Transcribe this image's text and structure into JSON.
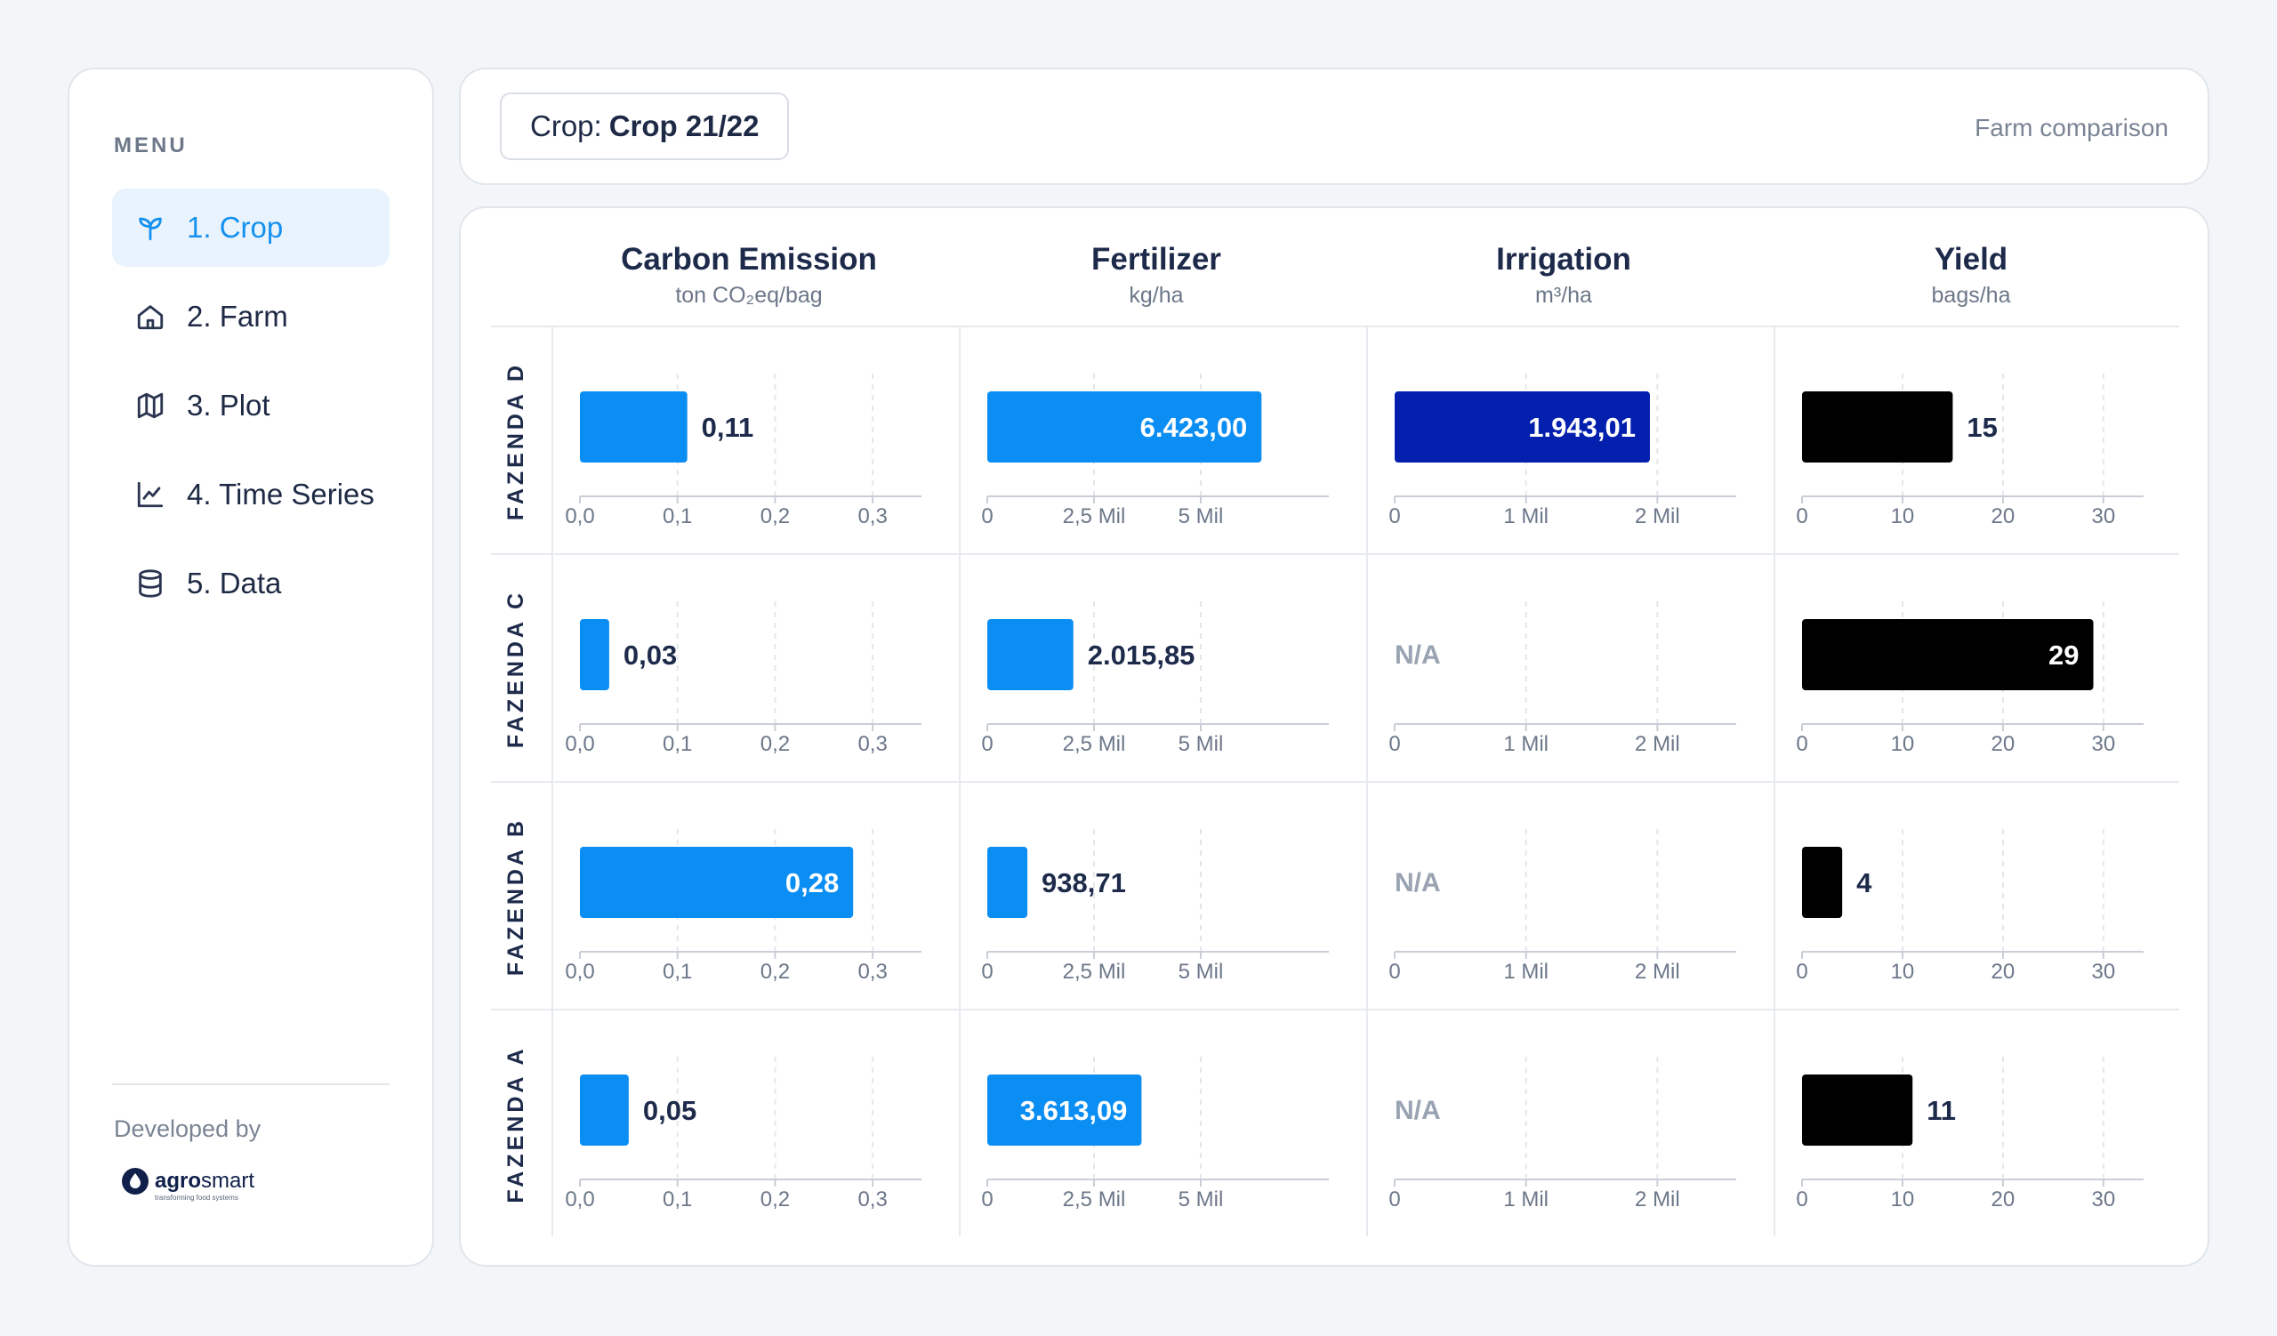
{
  "sidebar": {
    "menu_title": "MENU",
    "items": [
      {
        "label": "1. Crop",
        "icon": "sprout-icon",
        "active": true
      },
      {
        "label": "2. Farm",
        "icon": "house-icon",
        "active": false
      },
      {
        "label": "3. Plot",
        "icon": "map-icon",
        "active": false
      },
      {
        "label": "4. Time Series",
        "icon": "line-chart-icon",
        "active": false
      },
      {
        "label": "5. Data",
        "icon": "database-icon",
        "active": false
      }
    ],
    "developed_by": "Developed by",
    "logo": {
      "bold": "agro",
      "regular": "smart",
      "tagline": "transforming food systems"
    }
  },
  "header": {
    "crop_label": "Crop:",
    "crop_value": "Crop 21/22",
    "view_name": "Farm comparison"
  },
  "colors": {
    "accent": "#1591ef",
    "carbon": "#0b8ef3",
    "fertilizer": "#0b8ef3",
    "irrigation": "#0220ad",
    "yield": "#000000",
    "na": "#9aa3b1"
  },
  "chart_data": {
    "type": "bar",
    "orientation": "horizontal",
    "farms": [
      "FAZENDA D",
      "FAZENDA C",
      "FAZENDA B",
      "FAZENDA A"
    ],
    "na_label": "N/A",
    "metrics": [
      {
        "key": "carbon",
        "title": "Carbon Emission",
        "unit": "ton CO₂eq/bag",
        "xlim": [
          0,
          0.35
        ],
        "ticks": [
          0,
          0.1,
          0.2,
          0.3
        ],
        "tick_labels": [
          "0,0",
          "0,1",
          "0,2",
          "0,3"
        ],
        "values": [
          0.11,
          0.03,
          0.28,
          0.05
        ],
        "value_labels": [
          "0,11",
          "0,03",
          "0,28",
          "0,05"
        ]
      },
      {
        "key": "fertilizer",
        "title": "Fertilizer",
        "unit": "kg/ha",
        "xlim": [
          0,
          8000
        ],
        "ticks": [
          0,
          2500,
          5000
        ],
        "tick_labels": [
          "0",
          "2,5 Mil",
          "5 Mil"
        ],
        "values": [
          6423.0,
          2015.85,
          938.71,
          3613.09
        ],
        "value_labels": [
          "6.423,00",
          "2.015,85",
          "938,71",
          "3.613,09"
        ]
      },
      {
        "key": "irrigation",
        "title": "Irrigation",
        "unit": "m³/ha",
        "xlim": [
          0,
          2600
        ],
        "ticks": [
          0,
          1000,
          2000
        ],
        "tick_labels": [
          "0",
          "1 Mil",
          "2 Mil"
        ],
        "values": [
          1943.01,
          null,
          null,
          null
        ],
        "value_labels": [
          "1.943,01",
          "N/A",
          "N/A",
          "N/A"
        ]
      },
      {
        "key": "yield",
        "title": "Yield",
        "unit": "bags/ha",
        "xlim": [
          0,
          34
        ],
        "ticks": [
          0,
          10,
          20,
          30
        ],
        "tick_labels": [
          "0",
          "10",
          "20",
          "30"
        ],
        "values": [
          15,
          29,
          4,
          11
        ],
        "value_labels": [
          "15",
          "29",
          "4",
          "11"
        ]
      }
    ]
  }
}
